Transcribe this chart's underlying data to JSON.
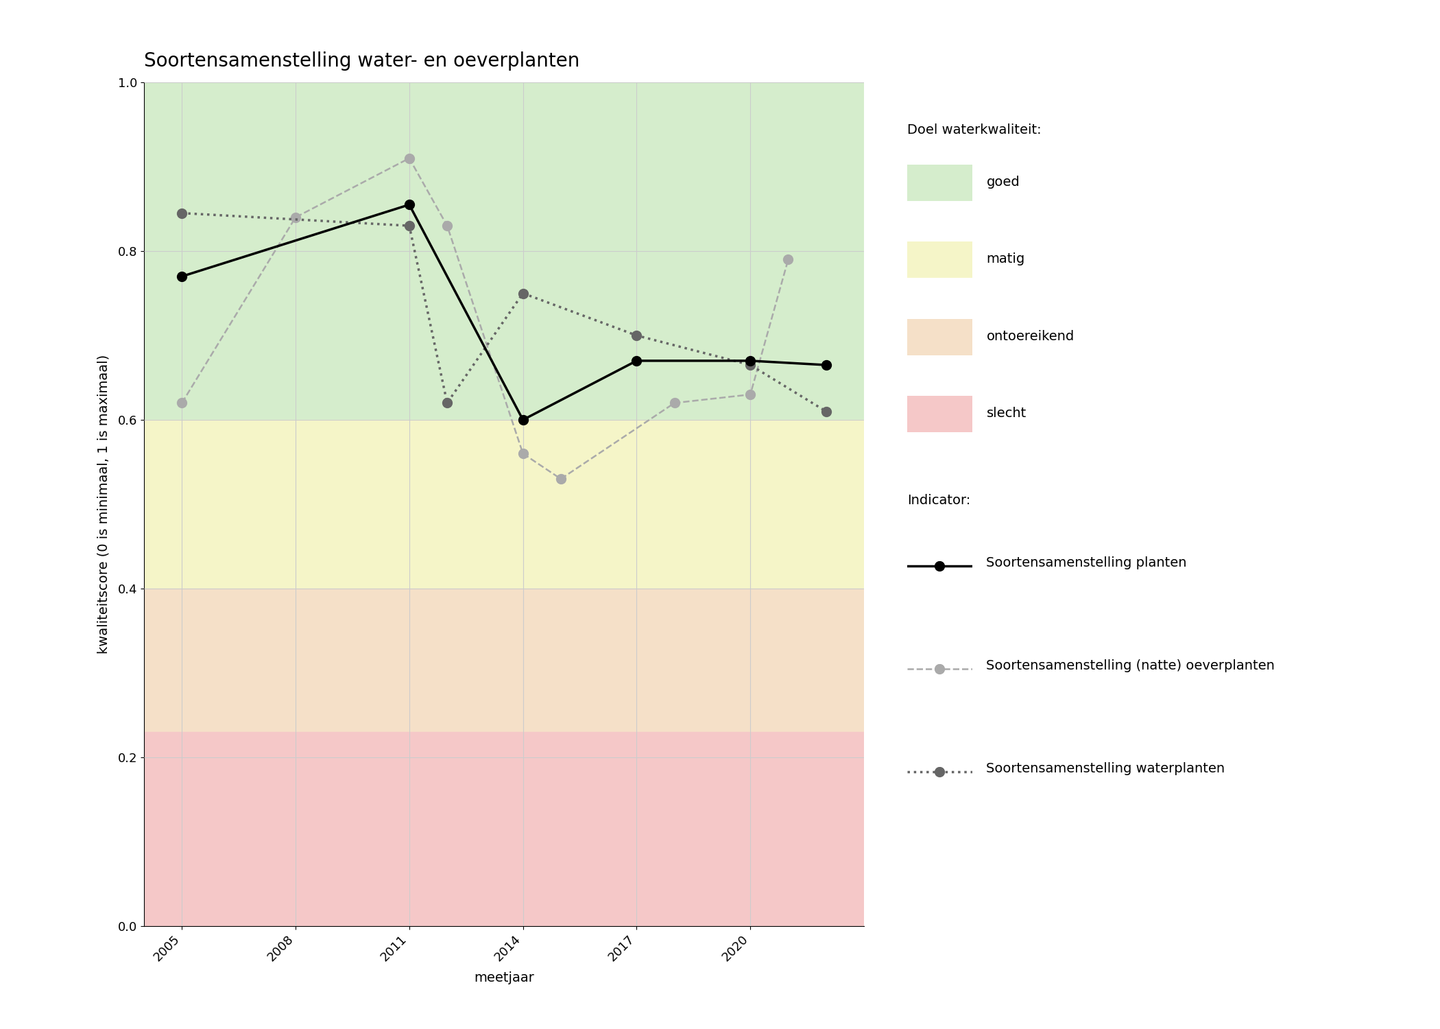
{
  "title": "Soortensamenstelling water- en oeverplanten",
  "xlabel": "meetjaar",
  "ylabel": "kwaliteitscore (0 is minimaal, 1 is maximaal)",
  "xlim": [
    2004,
    2023
  ],
  "ylim": [
    0.0,
    1.0
  ],
  "xticks": [
    2005,
    2008,
    2011,
    2014,
    2017,
    2020
  ],
  "yticks": [
    0.0,
    0.2,
    0.4,
    0.6,
    0.8,
    1.0
  ],
  "background_zones": [
    {
      "ymin": 0.6,
      "ymax": 1.0,
      "color": "#d5edcc",
      "label": "goed"
    },
    {
      "ymin": 0.4,
      "ymax": 0.6,
      "color": "#f5f5c8",
      "label": "matig"
    },
    {
      "ymin": 0.23,
      "ymax": 0.4,
      "color": "#f5e0c8",
      "label": "ontoereikend"
    },
    {
      "ymin": 0.0,
      "ymax": 0.23,
      "color": "#f5c8c8",
      "label": "slecht"
    }
  ],
  "series_planten": {
    "x": [
      2005,
      2011,
      2014,
      2017,
      2020,
      2022
    ],
    "y": [
      0.77,
      0.855,
      0.6,
      0.67,
      0.67,
      0.665
    ],
    "color": "black",
    "linestyle": "solid",
    "linewidth": 2.5,
    "marker": "o",
    "markersize": 10,
    "label": "Soortensamenstelling planten",
    "zorder": 5
  },
  "series_oeverplanten": {
    "x": [
      2005,
      2008,
      2011,
      2012,
      2014,
      2015,
      2018,
      2020,
      2021
    ],
    "y": [
      0.62,
      0.84,
      0.91,
      0.83,
      0.56,
      0.53,
      0.62,
      0.63,
      0.79
    ],
    "color": "#aaaaaa",
    "linestyle": "dashed",
    "linewidth": 1.8,
    "marker": "o",
    "markersize": 10,
    "label": "Soortensamenstelling (natte) oeverplanten",
    "zorder": 4
  },
  "series_waterplanten": {
    "x": [
      2005,
      2011,
      2012,
      2014,
      2017,
      2020,
      2022
    ],
    "y": [
      0.845,
      0.83,
      0.62,
      0.75,
      0.7,
      0.665,
      0.61
    ],
    "color": "#666666",
    "linestyle": "dotted",
    "linewidth": 2.5,
    "marker": "o",
    "markersize": 10,
    "label": "Soortensamenstelling waterplanten",
    "zorder": 4
  },
  "legend_quality_title": "Doel waterkwaliteit:",
  "legend_indicator_title": "Indicator:",
  "title_fontsize": 20,
  "axis_label_fontsize": 14,
  "tick_fontsize": 13,
  "legend_fontsize": 14
}
